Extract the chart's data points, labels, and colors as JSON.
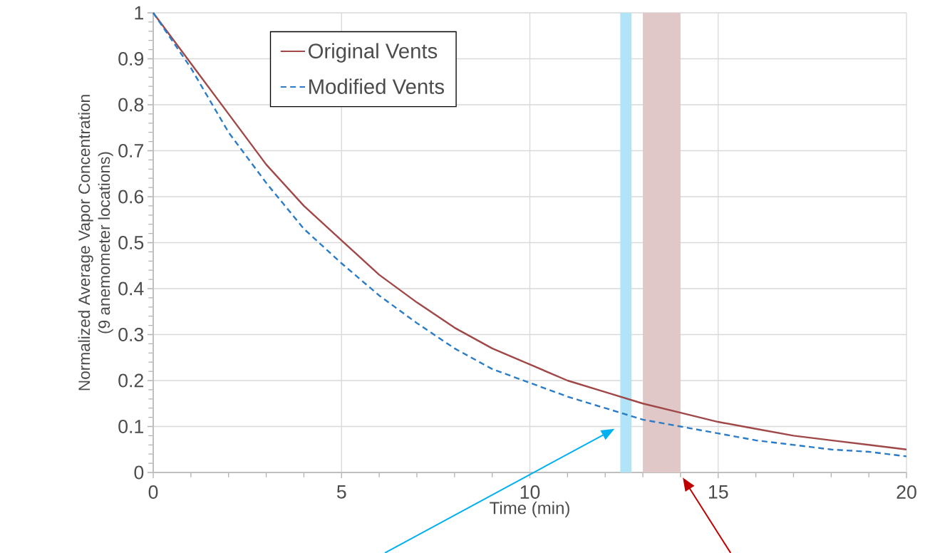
{
  "chart_data": {
    "type": "line",
    "xlabel": "Time (min)",
    "ylabel": "Normalized Average Vapor Concentration\n(9 anemometer locations)",
    "x": [
      0,
      1,
      2,
      3,
      4,
      5,
      6,
      7,
      8,
      9,
      10,
      11,
      12,
      13,
      14,
      15,
      16,
      17,
      18,
      19,
      20
    ],
    "series": [
      {
        "name": "Original Vents",
        "color": "#a04848",
        "line_style": "solid",
        "values": [
          1,
          0.89,
          0.78,
          0.67,
          0.58,
          0.505,
          0.43,
          0.37,
          0.315,
          0.27,
          0.235,
          0.2,
          0.175,
          0.15,
          0.13,
          0.11,
          0.095,
          0.08,
          0.07,
          0.06,
          0.05
        ]
      },
      {
        "name": "Modified Vents",
        "color": "#2a7cc7",
        "line_style": "dashed",
        "values": [
          1,
          0.88,
          0.74,
          0.63,
          0.53,
          0.455,
          0.385,
          0.325,
          0.27,
          0.225,
          0.195,
          0.165,
          0.14,
          0.115,
          0.1,
          0.085,
          0.07,
          0.06,
          0.05,
          0.045,
          0.035
        ]
      }
    ],
    "bands": [
      {
        "axis": "x",
        "from": 12.4,
        "to": 12.7,
        "color": "#b0e4f6"
      },
      {
        "axis": "x",
        "from": 13.0,
        "to": 14.0,
        "color": "#e0c8c8"
      }
    ],
    "xlim": [
      0,
      20
    ],
    "ylim": [
      0,
      1
    ],
    "xticks": [
      0,
      5,
      10,
      15,
      20
    ],
    "yticks": [
      0,
      0.1,
      0.2,
      0.3,
      0.4,
      0.5,
      0.6,
      0.7,
      0.8,
      0.9,
      1
    ],
    "grid": true,
    "legend": "top left",
    "marker": "none"
  }
}
